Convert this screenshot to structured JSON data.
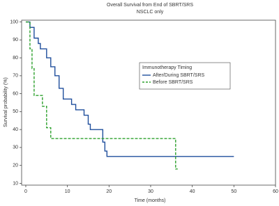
{
  "chart_data": {
    "type": "step",
    "title": "Overall Survival from End of SBRT/SRS",
    "subtitle": "NSCLC only",
    "x_label": "Time (months)",
    "y_label": "Survival probability (%)",
    "legend_title": "Immunotherapy Timing",
    "xlim": [
      -1,
      60
    ],
    "ylim": [
      9,
      101
    ],
    "xticks": [
      0,
      10,
      20,
      30,
      40,
      50,
      60
    ],
    "yticks": [
      10,
      20,
      30,
      40,
      50,
      60,
      70,
      80,
      90,
      100
    ],
    "series": [
      {
        "name": "After/During SBRT/SRS",
        "color": "#1f4e9c",
        "dash": false,
        "x": [
          0,
          1,
          2,
          3,
          3.5,
          5,
          6,
          7,
          8,
          9,
          11,
          12,
          14,
          15,
          15.5,
          18.5,
          19,
          19.5,
          50
        ],
        "values": [
          100,
          97,
          91,
          88,
          85,
          80,
          75,
          70,
          63,
          57,
          54,
          51,
          48,
          43,
          40,
          33,
          28,
          25,
          25
        ]
      },
      {
        "name": "Before SBRT/SRS",
        "color": "#2ca02c",
        "dash": true,
        "x": [
          0,
          1,
          1.5,
          2,
          4,
          5,
          6,
          36,
          36.5
        ],
        "values": [
          100,
          85,
          74,
          59,
          53,
          41,
          35,
          18,
          18
        ]
      }
    ]
  }
}
